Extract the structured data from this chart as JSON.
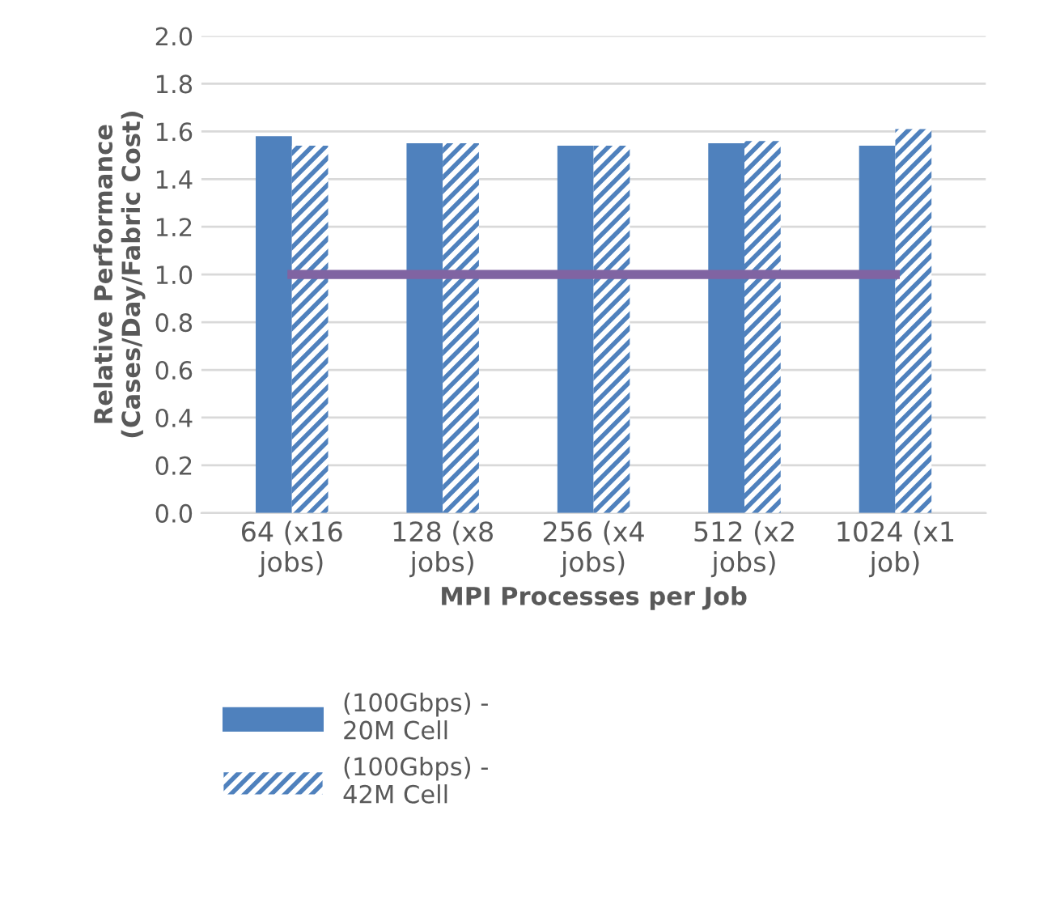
{
  "chart_data": {
    "type": "bar",
    "ylabel": "Relative Performance\n(Cases/Day/Fabric Cost)",
    "xlabel": "MPI Processes per Job",
    "categories": [
      "64 (x16\njobs)",
      "128 (x8\njobs)",
      "256 (x4\njobs)",
      "512 (x2\njobs)",
      "1024 (x1\njob)"
    ],
    "series": [
      {
        "name": "(100Gbps) -\n20M Cell",
        "color": "#4f81bd",
        "values": [
          1.58,
          1.55,
          1.54,
          1.55,
          1.54
        ]
      },
      {
        "name": "(100Gbps) -\n42M Cell",
        "color": "#4f81bd",
        "values": [
          1.54,
          1.55,
          1.54,
          1.56,
          1.61
        ]
      },
      {
        "type": "line",
        "color": "#8064a2",
        "values": [
          1.0,
          1.0,
          1.0,
          1.0,
          1.0
        ]
      }
    ],
    "ylim": [
      0,
      2.0
    ],
    "yticks": [
      {
        "value": 0,
        "label": "0.0"
      },
      0.2,
      0.4,
      0.6,
      0.8,
      {
        "value": 1,
        "label": "1.0"
      },
      1.2,
      1.4,
      1.6,
      1.8,
      {
        "value": 2,
        "label": "2.0"
      }
    ],
    "grid": "y",
    "legend": "bottom"
  }
}
